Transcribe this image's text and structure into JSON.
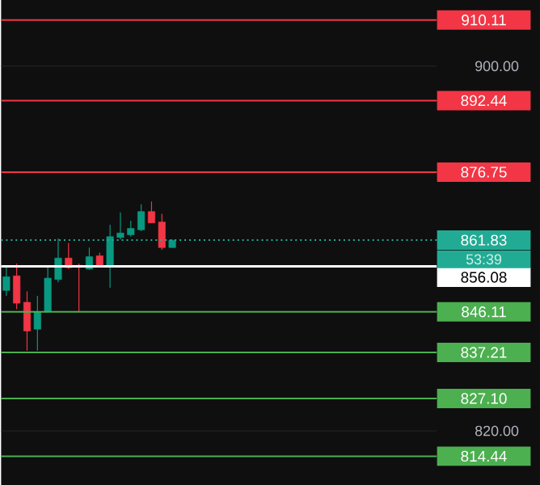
{
  "chart_data": {
    "type": "candlestick",
    "categories": [
      null,
      null,
      null,
      null,
      null,
      null,
      null,
      null,
      null,
      null,
      null,
      null,
      null,
      null,
      null,
      null,
      null,
      null,
      null,
      null,
      null,
      null,
      null,
      null,
      null,
      null,
      null,
      null,
      null,
      null,
      null,
      null,
      null,
      null,
      null,
      null,
      null,
      null,
      null,
      null,
      null,
      null
    ],
    "ohlc": [
      [
        850.8,
        856.1,
        849.6,
        853.8
      ],
      [
        854.0,
        856.7,
        846.7,
        848.0
      ],
      [
        848.2,
        850.6,
        837.6,
        841.9
      ],
      [
        842.3,
        849.6,
        837.6,
        846.1
      ],
      [
        846.1,
        856.1,
        846.1,
        853.5
      ],
      [
        853.2,
        862.2,
        852.6,
        857.9
      ],
      [
        857.9,
        861.2,
        855.5,
        855.8
      ],
      [
        856.3,
        856.7,
        846.1,
        856.0
      ],
      [
        855.5,
        860.2,
        855.3,
        858.2
      ],
      [
        858.4,
        859.1,
        856.1,
        856.3
      ],
      [
        856.3,
        865.2,
        851.4,
        862.6
      ],
      [
        862.4,
        867.9,
        862.0,
        863.4
      ],
      [
        863.0,
        866.1,
        862.6,
        864.4
      ],
      [
        864.1,
        869.7,
        863.8,
        868.1
      ],
      [
        868.1,
        870.3,
        865.6,
        865.6
      ],
      [
        865.8,
        867.6,
        859.7,
        860.2
      ],
      [
        860.2,
        862.0,
        860.2,
        861.8
      ],
      null,
      null,
      null,
      null,
      null,
      null,
      null,
      null,
      null,
      null,
      null,
      null,
      null,
      null,
      null,
      null,
      null,
      null,
      null,
      null,
      null,
      null,
      null,
      null,
      null
    ],
    "colors": [
      "#089981",
      "#f23645",
      "#f23645",
      "#089981",
      "#089981",
      "#089981",
      "#f23645",
      "#f23645",
      "#089981",
      "#f23645",
      "#089981",
      "#089981",
      "#089981",
      "#089981",
      "#f23645",
      "#f23645",
      "#089981",
      null,
      null,
      null,
      null,
      null,
      null,
      null,
      null,
      null,
      null,
      null,
      null,
      null,
      null,
      null,
      null,
      null,
      null,
      null,
      null,
      null,
      null,
      null,
      null,
      null
    ],
    "ylim": [
      808,
      914.5
    ],
    "yticks": [
      {
        "value": 900,
        "label": "900.00"
      },
      {
        "value": 820,
        "label": "820.00"
      }
    ],
    "grid": "y",
    "ref_lines": [
      {
        "axis": "y",
        "value": 910.11,
        "label": "910.11",
        "color": "#f23645"
      },
      {
        "axis": "y",
        "value": 892.44,
        "label": "892.44",
        "color": "#f23645"
      },
      {
        "axis": "y",
        "value": 876.75,
        "label": "876.75",
        "color": "#f23645"
      },
      {
        "axis": "y",
        "value": 861.83,
        "label": "861.83",
        "color": "#22ab94",
        "line_style": "dotted"
      },
      {
        "axis": "y",
        "value": 856.08,
        "label": "856.08",
        "color": "#ffffff"
      },
      {
        "axis": "y",
        "value": 846.11,
        "label": "846.11",
        "color": "#4caf50"
      },
      {
        "axis": "y",
        "value": 837.21,
        "label": "837.21",
        "color": "#4caf50"
      },
      {
        "axis": "y",
        "value": 827.1,
        "label": "827.10",
        "color": "#4caf50"
      },
      {
        "axis": "y",
        "value": 814.44,
        "label": "814.44",
        "color": "#4caf50"
      }
    ],
    "annotations": [
      "53:39"
    ]
  }
}
